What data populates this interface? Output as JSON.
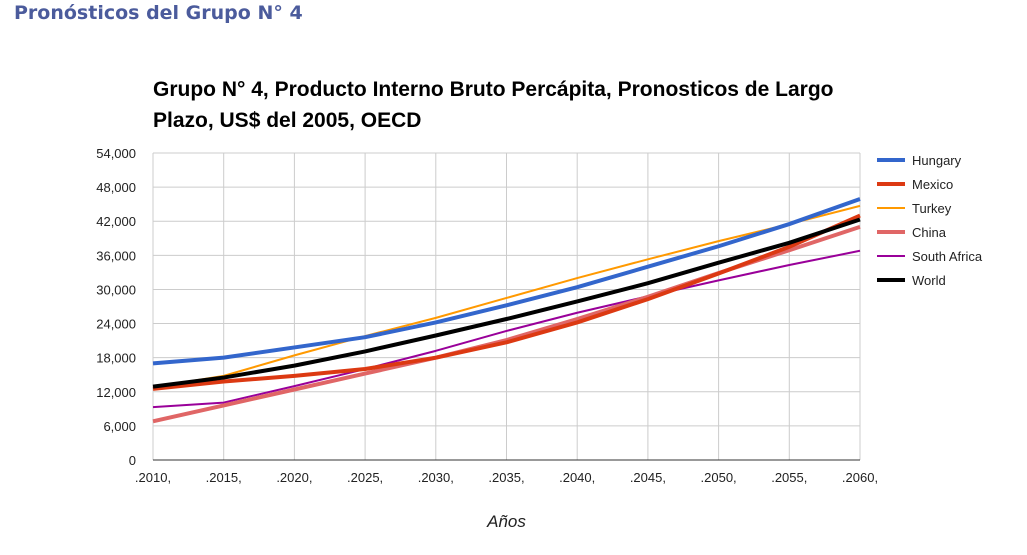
{
  "page_heading": "Pronósticos del Grupo N° 4",
  "chart_data": {
    "type": "line",
    "title": "Grupo N° 4, Producto Interno Bruto Percápita, Pronosticos de Largo Plazo, US$ del 2005, OECD",
    "xlabel": "Años",
    "ylabel": "",
    "x": [
      2010,
      2015,
      2020,
      2025,
      2030,
      2035,
      2040,
      2045,
      2050,
      2055,
      2060
    ],
    "x_tick_labels": [
      ".2010,",
      ".2015,",
      ".2020,",
      ".2025,",
      ".2030,",
      ".2035,",
      ".2040,",
      ".2045,",
      ".2050,",
      ".2055,",
      ".2060,"
    ],
    "y_tick_labels": [
      "0",
      "6,000",
      "12,000",
      "18,000",
      "24,000",
      "30,000",
      "36,000",
      "42,000",
      "48,000",
      "54,000"
    ],
    "ylim": [
      0,
      54000
    ],
    "grid": true,
    "legend_position": "right",
    "series": [
      {
        "name": "Hungary",
        "color": "#3366cc",
        "width": 4,
        "values": [
          17000,
          18000,
          19800,
          21600,
          24200,
          27200,
          30400,
          34000,
          37600,
          41500,
          45900
        ]
      },
      {
        "name": "Mexico",
        "color": "#dc3912",
        "width": 4,
        "values": [
          12500,
          13800,
          14800,
          16000,
          18000,
          20700,
          24200,
          28300,
          32800,
          37500,
          43000
        ]
      },
      {
        "name": "Turkey",
        "color": "#ff9900",
        "width": 2,
        "values": [
          12800,
          14800,
          18400,
          21800,
          25000,
          28500,
          32000,
          35300,
          38500,
          41500,
          44700
        ]
      },
      {
        "name": "China",
        "color": "#e06666",
        "width": 4,
        "values": [
          6800,
          9600,
          12400,
          15200,
          18000,
          21100,
          24800,
          28700,
          32900,
          36900,
          41000
        ]
      },
      {
        "name": "South Africa",
        "color": "#990099",
        "width": 2,
        "values": [
          9300,
          10100,
          13000,
          16000,
          19200,
          22700,
          25900,
          28800,
          31600,
          34300,
          36800
        ]
      },
      {
        "name": "World",
        "color": "#000000",
        "width": 4,
        "values": [
          12900,
          14500,
          16600,
          19100,
          21900,
          24800,
          27900,
          31100,
          34700,
          38200,
          42300
        ]
      }
    ]
  }
}
